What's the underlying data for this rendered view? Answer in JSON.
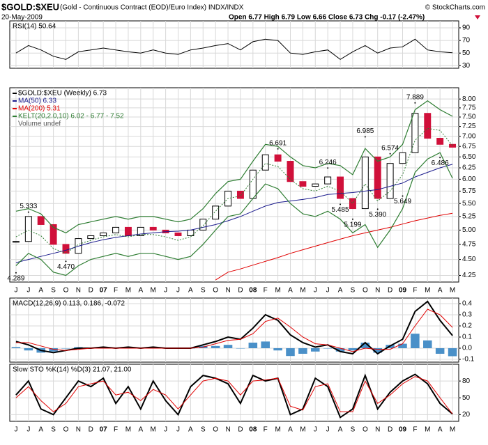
{
  "header": {
    "symbol": "$GOLD:$XEU",
    "description": "(Gold - Continuous Contract (EOD)/Euro Index) INDX/INDX",
    "copyright": "© StockCharts.com",
    "date": "20-May-2009",
    "quote": "Open 6.77  High 6.79  Low 6.66  Close 6.73  Chg -0.17 (-2.47%)"
  },
  "chart_data": [
    {
      "type": "line",
      "label": "RSI(14) 50.64",
      "ylim": [
        26,
        101
      ],
      "yticks": [
        90,
        70,
        50,
        30
      ],
      "grid": true,
      "series": [
        {
          "color": "#000000",
          "type": "line",
          "values": [
            50,
            62,
            55,
            45,
            40,
            52,
            55,
            58,
            55,
            52,
            50,
            55,
            50,
            48,
            55,
            58,
            62,
            65,
            55,
            68,
            72,
            70,
            50,
            48,
            52,
            55,
            40,
            52,
            62,
            50,
            58,
            60,
            72,
            55,
            52,
            50.64
          ]
        }
      ]
    },
    {
      "type": "line",
      "log": true,
      "ylim": [
        4.15,
        8.33
      ],
      "grid": true,
      "volume": "Volume undef",
      "categories": [
        "J",
        "J",
        "A",
        "S",
        "O",
        "N",
        "D",
        "07",
        "F",
        "M",
        "A",
        "M",
        "J",
        "J",
        "A",
        "S",
        "O",
        "N",
        "D",
        "08",
        "F",
        "M",
        "A",
        "M",
        "J",
        "J",
        "A",
        "S",
        "O",
        "N",
        "D",
        "09",
        "F",
        "M",
        "A",
        "M"
      ],
      "yticks": [
        {
          "value": 8,
          "label": "8.00"
        },
        {
          "value": 7.75,
          "label": "7.75"
        },
        {
          "value": 7.5,
          "label": "7.50"
        },
        {
          "value": 7.25,
          "label": "7.25"
        },
        {
          "value": 7,
          "label": "7.00"
        },
        {
          "value": 6.75,
          "label": "6.75"
        },
        {
          "value": 6.5,
          "label": "6.50"
        },
        {
          "value": 6.25,
          "label": "6.25"
        },
        {
          "value": 6,
          "label": "6.00"
        },
        {
          "value": 5.75,
          "label": "5.75"
        },
        {
          "value": 5.5,
          "label": "5.50"
        },
        {
          "value": 5.25,
          "label": "5.25"
        },
        {
          "value": 5,
          "label": "5.00"
        },
        {
          "value": 4.75,
          "label": "4.75"
        },
        {
          "value": 4.5,
          "label": "4.50"
        },
        {
          "value": 4.25,
          "label": "4.25"
        }
      ],
      "series": [
        {
          "name": "$GOLD:$XEU (Weekly) 6.73",
          "type": "candle",
          "color": "#000000",
          "down_color": "#d0103a",
          "values": [
            4.8,
            5.25,
            5.1,
            4.75,
            4.6,
            4.85,
            4.9,
            4.95,
            5.05,
            4.9,
            5.05,
            5.0,
            4.95,
            4.9,
            5.0,
            5.2,
            5.45,
            5.75,
            5.6,
            6.2,
            6.55,
            6.4,
            5.95,
            5.85,
            5.9,
            6.05,
            5.6,
            5.4,
            6.5,
            5.6,
            6.35,
            6.6,
            7.6,
            6.95,
            6.8,
            6.73
          ]
        },
        {
          "name": "MA(50) 6.33",
          "type": "line",
          "color": "#1a1a8c",
          "values": [
            4.45,
            4.5,
            4.55,
            4.6,
            4.65,
            4.72,
            4.78,
            4.83,
            4.87,
            4.9,
            4.93,
            4.95,
            4.97,
            4.98,
            5.0,
            5.05,
            5.1,
            5.17,
            5.25,
            5.35,
            5.45,
            5.52,
            5.55,
            5.58,
            5.62,
            5.68,
            5.7,
            5.72,
            5.75,
            5.78,
            5.85,
            5.92,
            6.05,
            6.15,
            6.25,
            6.33
          ]
        },
        {
          "name": "MA(200) 5.31",
          "type": "line",
          "color": "#e00000",
          "values": [
            null,
            null,
            null,
            null,
            null,
            null,
            null,
            null,
            null,
            null,
            null,
            null,
            null,
            null,
            null,
            null,
            4.18,
            4.3,
            4.35,
            4.41,
            4.47,
            4.53,
            4.6,
            4.66,
            4.72,
            4.78,
            4.84,
            4.9,
            4.95,
            5.0,
            5.05,
            5.11,
            5.17,
            5.22,
            5.27,
            5.31
          ]
        },
        {
          "name": "KELT(20,2.0,10) 6.02 - 6.77 - 7.52",
          "type": "band",
          "color": "#2e7d32",
          "upper": [
            5.35,
            5.4,
            5.3,
            5.05,
            4.95,
            5.1,
            5.15,
            5.2,
            5.25,
            5.2,
            5.25,
            5.25,
            5.2,
            5.15,
            5.2,
            5.4,
            5.7,
            5.95,
            6.0,
            6.4,
            6.8,
            6.75,
            6.5,
            6.3,
            6.25,
            6.35,
            6.3,
            6.1,
            6.7,
            6.4,
            6.5,
            6.8,
            7.7,
            7.95,
            7.7,
            7.52
          ],
          "middle": [
            4.88,
            5.0,
            4.9,
            4.68,
            4.6,
            4.75,
            4.82,
            4.88,
            4.92,
            4.88,
            4.92,
            4.92,
            4.88,
            4.82,
            4.88,
            5.08,
            5.35,
            5.6,
            5.65,
            6.0,
            6.35,
            6.28,
            6.0,
            5.8,
            5.75,
            5.85,
            5.75,
            5.5,
            5.9,
            5.55,
            5.75,
            6.1,
            6.9,
            7.2,
            7.15,
            6.77
          ],
          "lower": [
            4.4,
            4.6,
            4.5,
            4.3,
            4.25,
            4.4,
            4.5,
            4.55,
            4.6,
            4.55,
            4.6,
            4.6,
            4.55,
            4.5,
            4.55,
            4.75,
            5.0,
            5.25,
            5.3,
            5.6,
            5.9,
            5.8,
            5.5,
            5.3,
            5.25,
            5.35,
            5.2,
            4.95,
            5.1,
            4.7,
            5.0,
            5.4,
            6.15,
            6.45,
            6.6,
            6.02
          ]
        }
      ],
      "annotations": [
        {
          "x": 0,
          "value": 4.289,
          "label": "4.289"
        },
        {
          "x": 1,
          "value": 5.333,
          "label": "5.333"
        },
        {
          "x": 4,
          "value": 4.47,
          "label": "4.470"
        },
        {
          "x": 21,
          "value": 6.691,
          "label": "6.691"
        },
        {
          "x": 25,
          "value": 6.246,
          "label": "6.246"
        },
        {
          "x": 26,
          "value": 5.485,
          "label": "5.485"
        },
        {
          "x": 27,
          "value": 5.199,
          "label": "5.199"
        },
        {
          "x": 28,
          "value": 6.985,
          "label": "6.985"
        },
        {
          "x": 29,
          "value": 5.39,
          "label": "5.390"
        },
        {
          "x": 30,
          "value": 6.574,
          "label": "6.574"
        },
        {
          "x": 31,
          "value": 5.649,
          "label": "5.649"
        },
        {
          "x": 32,
          "value": 7.889,
          "label": "7.889"
        },
        {
          "x": 34,
          "value": 6.486,
          "label": "6.486"
        }
      ]
    },
    {
      "type": "line",
      "label": "MACD(12,26,9) 0.113, 0.186, -0.072",
      "ylim": [
        -0.125,
        0.45
      ],
      "grid": true,
      "yticks": [
        0.4,
        0.3,
        0.2,
        0.1,
        {
          "value": 0,
          "label": "0.0"
        },
        -0.1
      ],
      "series": [
        {
          "type": "bar",
          "color": "#4a90c8",
          "values": [
            0.01,
            -0.02,
            -0.04,
            -0.03,
            0,
            0.01,
            0,
            0.01,
            0,
            0.01,
            0,
            0.01,
            0,
            0,
            0,
            0.02,
            0.02,
            0.03,
            0,
            0.05,
            0.06,
            -0.02,
            -0.07,
            -0.05,
            -0.03,
            0,
            -0.03,
            -0.02,
            0.05,
            -0.04,
            0.03,
            0.04,
            0.13,
            0.07,
            -0.05,
            -0.072
          ]
        },
        {
          "type": "line",
          "color": "#000000",
          "width": 2,
          "values": [
            0.06,
            0.03,
            -0.02,
            -0.04,
            -0.02,
            0,
            0,
            0.01,
            0,
            0.01,
            0,
            0.01,
            0,
            0,
            0,
            0.03,
            0.06,
            0.1,
            0.08,
            0.18,
            0.3,
            0.25,
            0.12,
            0.05,
            0.01,
            0.03,
            -0.03,
            -0.05,
            0.05,
            -0.05,
            0.02,
            0.08,
            0.33,
            0.42,
            0.25,
            0.113
          ]
        },
        {
          "type": "line",
          "color": "#e00000",
          "values": [
            0.05,
            0.05,
            0.02,
            -0.01,
            -0.02,
            -0.01,
            0,
            0,
            0,
            0,
            0,
            0,
            0,
            0,
            0,
            0.01,
            0.04,
            0.07,
            0.08,
            0.13,
            0.24,
            0.27,
            0.19,
            0.1,
            0.04,
            0.03,
            0,
            -0.03,
            0,
            -0.01,
            -0.01,
            0.04,
            0.2,
            0.35,
            0.3,
            0.186
          ]
        }
      ]
    },
    {
      "type": "line",
      "label": "Slow STO %K(14) %D(3) 21.07, 21.00",
      "ylim": [
        8,
        110
      ],
      "yticks": [
        80,
        50,
        20
      ],
      "grid": true,
      "categories": [
        "J",
        "J",
        "A",
        "S",
        "O",
        "N",
        "D",
        "07",
        "F",
        "M",
        "A",
        "M",
        "J",
        "J",
        "A",
        "S",
        "O",
        "N",
        "D",
        "08",
        "F",
        "M",
        "A",
        "M",
        "J",
        "J",
        "A",
        "S",
        "O",
        "N",
        "D",
        "09",
        "F",
        "M",
        "A",
        "M"
      ],
      "series": [
        {
          "type": "line",
          "color": "#000000",
          "width": 2,
          "values": [
            55,
            80,
            30,
            20,
            50,
            80,
            70,
            85,
            40,
            70,
            30,
            80,
            45,
            20,
            70,
            90,
            85,
            75,
            40,
            90,
            80,
            85,
            20,
            30,
            85,
            70,
            15,
            30,
            90,
            30,
            60,
            80,
            92,
            75,
            40,
            21.07
          ]
        },
        {
          "type": "line",
          "color": "#e00000",
          "values": [
            50,
            70,
            45,
            25,
            40,
            70,
            75,
            80,
            55,
            60,
            45,
            65,
            55,
            30,
            55,
            80,
            85,
            80,
            55,
            80,
            82,
            85,
            35,
            28,
            70,
            75,
            25,
            25,
            80,
            40,
            55,
            75,
            88,
            80,
            50,
            21
          ]
        }
      ]
    }
  ]
}
